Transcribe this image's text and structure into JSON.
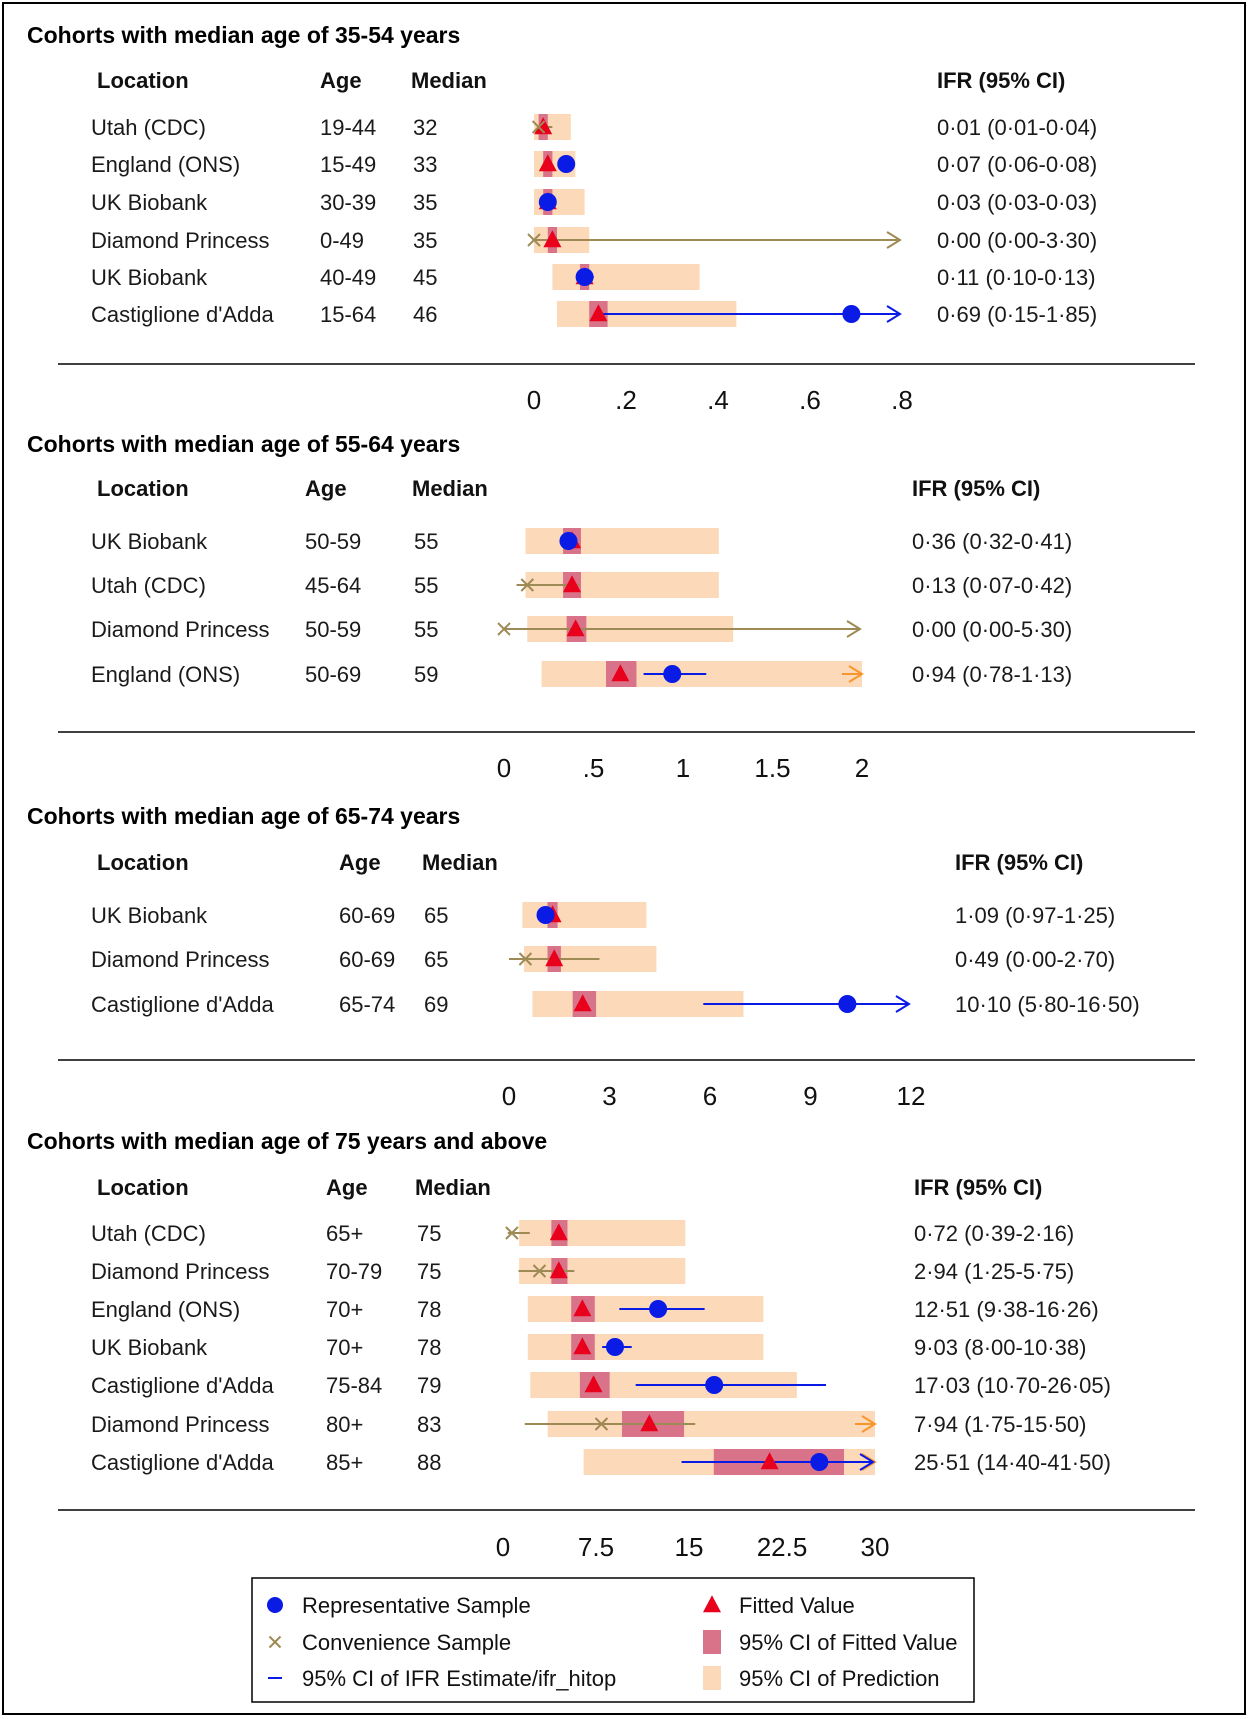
{
  "legend": {
    "representative": "Representative Sample",
    "convenience": "Convenience Sample",
    "ci_ifr": "95% CI of IFR Estimate/ifr_hitop",
    "fitted": "Fitted Value",
    "ci_fitted": "95% CI of Fitted Value",
    "ci_prediction": "95% CI of Prediction"
  },
  "colors": {
    "representative": "#0a1be6",
    "convenience": "#9e8a55",
    "fitted": "#e8001c",
    "ci_fitted": "#d9738a",
    "ci_prediction": "#fcd9b8",
    "arrow_prediction": "#f7962e"
  },
  "columns": {
    "location": "Location",
    "age": "Age",
    "median": "Median",
    "ifr": "IFR (95% CI)"
  },
  "chart_data": [
    {
      "type": "forest",
      "title": "Cohorts with median age of 35-54 years",
      "ticks": [
        "0",
        ".2",
        ".4",
        ".6",
        ".8"
      ],
      "xlim": [
        0,
        0.8
      ],
      "rows": [
        {
          "location": "Utah (CDC)",
          "age": "19-44",
          "median": "32",
          "ifr": "0·01 (0·01-0·04)",
          "sample": "convenience",
          "est": 0.01,
          "ci": [
            0.01,
            0.04
          ],
          "fitted": 0.02,
          "fitted_ci": [
            0.01,
            0.03
          ],
          "pred_ci": [
            0.0,
            0.08
          ]
        },
        {
          "location": "England (ONS)",
          "age": "15-49",
          "median": "33",
          "ifr": "0·07 (0·06-0·08)",
          "sample": "representative",
          "est": 0.07,
          "ci": [
            0.06,
            0.08
          ],
          "fitted": 0.03,
          "fitted_ci": [
            0.02,
            0.04
          ],
          "pred_ci": [
            0.0,
            0.09
          ]
        },
        {
          "location": "UK Biobank",
          "age": "30-39",
          "median": "35",
          "ifr": "0·03 (0·03-0·03)",
          "sample": "representative",
          "est": 0.03,
          "ci": [
            0.03,
            0.03
          ],
          "fitted": 0.03,
          "fitted_ci": [
            0.02,
            0.04
          ],
          "pred_ci": [
            0.0,
            0.11
          ]
        },
        {
          "location": "Diamond Princess",
          "age": "0-49",
          "median": "35",
          "ifr": "0·00 (0·00-3·30)",
          "sample": "convenience",
          "est": 0.0,
          "ci": [
            0.0,
            3.3
          ],
          "fitted": 0.04,
          "fitted_ci": [
            0.03,
            0.05
          ],
          "pred_ci": [
            0.0,
            0.12
          ]
        },
        {
          "location": "UK Biobank",
          "age": "40-49",
          "median": "45",
          "ifr": "0·11 (0·10-0·13)",
          "sample": "representative",
          "est": 0.11,
          "ci": [
            0.1,
            0.13
          ],
          "fitted": 0.11,
          "fitted_ci": [
            0.1,
            0.12
          ],
          "pred_ci": [
            0.04,
            0.36
          ]
        },
        {
          "location": "Castiglione d'Adda",
          "age": "15-64",
          "median": "46",
          "ifr": "0·69 (0·15-1·85)",
          "sample": "representative",
          "est": 0.69,
          "ci": [
            0.15,
            1.85
          ],
          "fitted": 0.14,
          "fitted_ci": [
            0.12,
            0.16
          ],
          "pred_ci": [
            0.05,
            0.44
          ]
        }
      ]
    },
    {
      "type": "forest",
      "title": "Cohorts with median age of 55-64 years",
      "ticks": [
        "0",
        ".5",
        "1",
        "1.5",
        "2"
      ],
      "xlim": [
        0,
        2
      ],
      "rows": [
        {
          "location": "UK Biobank",
          "age": "50-59",
          "median": "55",
          "ifr": "0·36 (0·32-0·41)",
          "sample": "representative",
          "est": 0.36,
          "ci": [
            0.32,
            0.41
          ],
          "fitted": 0.38,
          "fitted_ci": [
            0.33,
            0.43
          ],
          "pred_ci": [
            0.12,
            1.2
          ]
        },
        {
          "location": "Utah (CDC)",
          "age": "45-64",
          "median": "55",
          "ifr": "0·13 (0·07-0·42)",
          "sample": "convenience",
          "est": 0.13,
          "ci": [
            0.07,
            0.42
          ],
          "fitted": 0.38,
          "fitted_ci": [
            0.33,
            0.43
          ],
          "pred_ci": [
            0.12,
            1.2
          ]
        },
        {
          "location": "Diamond Princess",
          "age": "50-59",
          "median": "55",
          "ifr": "0·00 (0·00-5·30)",
          "sample": "convenience",
          "est": 0.0,
          "ci": [
            0.0,
            5.3
          ],
          "fitted": 0.4,
          "fitted_ci": [
            0.35,
            0.46
          ],
          "pred_ci": [
            0.13,
            1.28
          ]
        },
        {
          "location": "England (ONS)",
          "age": "50-69",
          "median": "59",
          "ifr": "0·94 (0·78-1·13)",
          "sample": "representative",
          "est": 0.94,
          "ci": [
            0.78,
            1.13
          ],
          "fitted": 0.65,
          "fitted_ci": [
            0.57,
            0.74
          ],
          "pred_ci": [
            0.21,
            2.3
          ]
        }
      ]
    },
    {
      "type": "forest",
      "title": "Cohorts with median age of 65-74 years",
      "ticks": [
        "0",
        "3",
        "6",
        "9",
        "12"
      ],
      "xlim": [
        0,
        12
      ],
      "rows": [
        {
          "location": "UK Biobank",
          "age": "60-69",
          "median": "65",
          "ifr": "1·09 (0·97-1·25)",
          "sample": "representative",
          "est": 1.09,
          "ci": [
            0.97,
            1.25
          ],
          "fitted": 1.3,
          "fitted_ci": [
            1.15,
            1.45
          ],
          "pred_ci": [
            0.4,
            4.1
          ]
        },
        {
          "location": "Diamond Princess",
          "age": "60-69",
          "median": "65",
          "ifr": "0·49 (0·00-2·70)",
          "sample": "convenience",
          "est": 0.49,
          "ci": [
            0.0,
            2.7
          ],
          "fitted": 1.35,
          "fitted_ci": [
            1.15,
            1.55
          ],
          "pred_ci": [
            0.45,
            4.4
          ]
        },
        {
          "location": "Castiglione d'Adda",
          "age": "65-74",
          "median": "69",
          "ifr": "10·10 (5·80-16·50)",
          "sample": "representative",
          "est": 10.1,
          "ci": [
            5.8,
            16.5
          ],
          "fitted": 2.2,
          "fitted_ci": [
            1.9,
            2.6
          ],
          "pred_ci": [
            0.7,
            7.0
          ]
        }
      ]
    },
    {
      "type": "forest",
      "title": "Cohorts with median age of 75 years and above",
      "ticks": [
        "0",
        "7.5",
        "15",
        "22.5",
        "30"
      ],
      "xlim": [
        0,
        30
      ],
      "rows": [
        {
          "location": "Utah (CDC)",
          "age": "65+",
          "median": "75",
          "ifr": "0·72 (0·39-2·16)",
          "sample": "convenience",
          "est": 0.72,
          "ci": [
            0.39,
            2.16
          ],
          "fitted": 4.5,
          "fitted_ci": [
            3.9,
            5.2
          ],
          "pred_ci": [
            1.3,
            14.7
          ]
        },
        {
          "location": "Diamond Princess",
          "age": "70-79",
          "median": "75",
          "ifr": "2·94 (1·25-5·75)",
          "sample": "convenience",
          "est": 2.94,
          "ci": [
            1.25,
            5.75
          ],
          "fitted": 4.5,
          "fitted_ci": [
            3.9,
            5.2
          ],
          "pred_ci": [
            1.3,
            14.7
          ]
        },
        {
          "location": "England (ONS)",
          "age": "70+",
          "median": "78",
          "ifr": "12·51 (9·38-16·26)",
          "sample": "representative",
          "est": 12.51,
          "ci": [
            9.38,
            16.26
          ],
          "fitted": 6.4,
          "fitted_ci": [
            5.5,
            7.4
          ],
          "pred_ci": [
            2.0,
            21.0
          ]
        },
        {
          "location": "UK Biobank",
          "age": "70+",
          "median": "78",
          "ifr": "9·03 (8·00-10·38)",
          "sample": "representative",
          "est": 9.03,
          "ci": [
            8.0,
            10.38
          ],
          "fitted": 6.4,
          "fitted_ci": [
            5.5,
            7.4
          ],
          "pred_ci": [
            2.0,
            21.0
          ]
        },
        {
          "location": "Castiglione d'Adda",
          "age": "75-84",
          "median": "79",
          "ifr": "17·03 (10·70-26·05)",
          "sample": "representative",
          "est": 17.03,
          "ci": [
            10.7,
            26.05
          ],
          "fitted": 7.3,
          "fitted_ci": [
            6.2,
            8.6
          ],
          "pred_ci": [
            2.2,
            23.7
          ]
        },
        {
          "location": "Diamond Princess",
          "age": "80+",
          "median": "83",
          "ifr": "7·94 (1·75-15·50)",
          "sample": "convenience",
          "est": 7.94,
          "ci": [
            1.75,
            15.5
          ],
          "fitted": 11.8,
          "fitted_ci": [
            9.6,
            14.6
          ],
          "pred_ci": [
            3.6,
            38.0
          ]
        },
        {
          "location": "Castiglione d'Adda",
          "age": "85+",
          "median": "88",
          "ifr": "25·51 (14·40-41·50)",
          "sample": "representative",
          "est": 25.51,
          "ci": [
            14.4,
            41.5
          ],
          "fitted": 21.5,
          "fitted_ci": [
            17.0,
            27.5
          ],
          "pred_ci": [
            6.5,
            65.0
          ]
        }
      ]
    }
  ]
}
